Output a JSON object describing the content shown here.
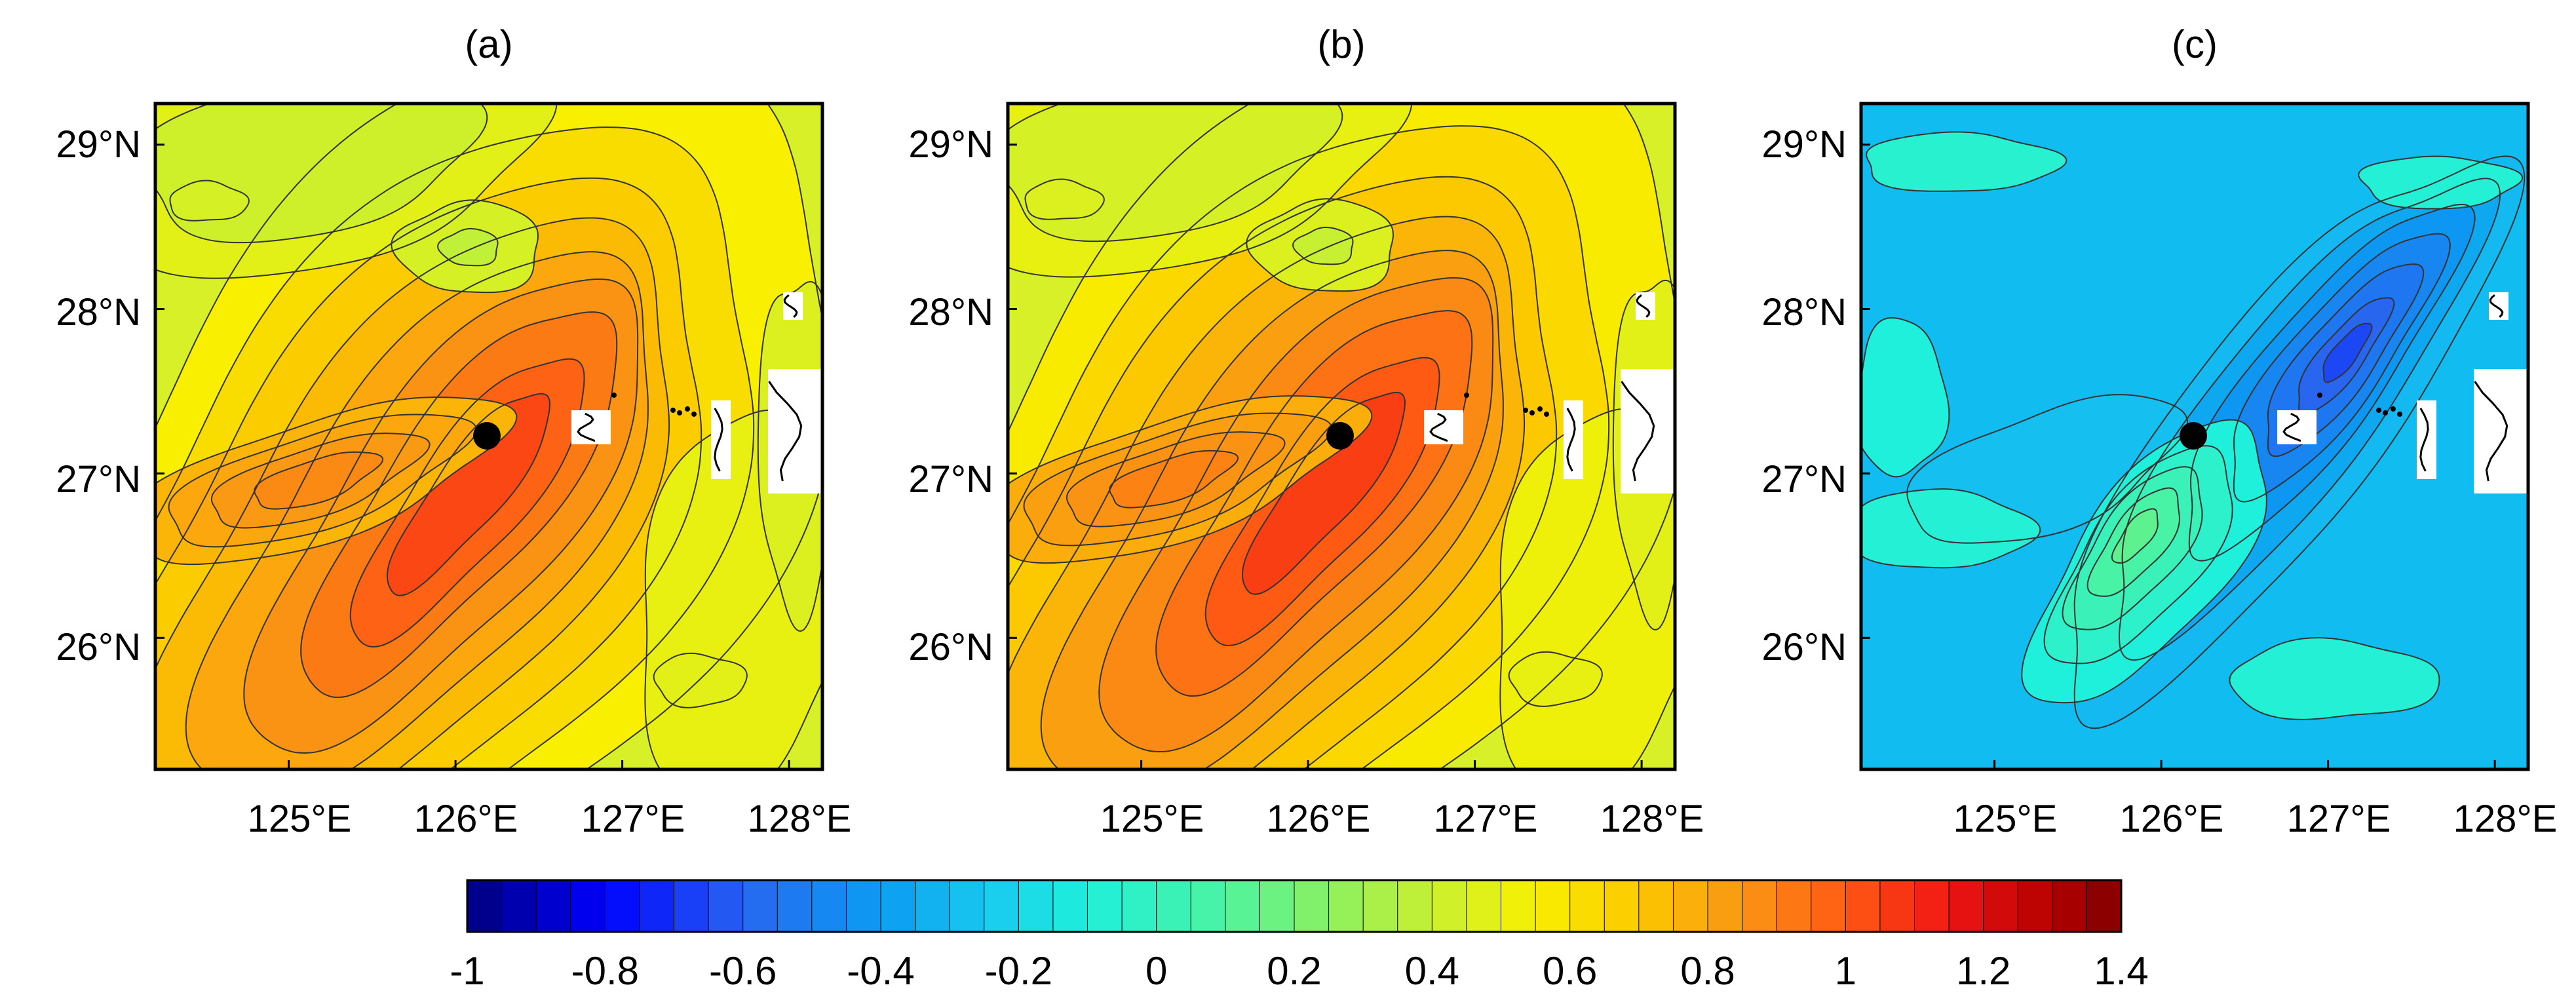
{
  "figure": {
    "panels": [
      {
        "label": "(a)",
        "field": "a"
      },
      {
        "label": "(b)",
        "field": "b"
      },
      {
        "label": "(c)",
        "field": "c"
      }
    ],
    "y_ticks": [
      "29°N",
      "28°N",
      "27°N",
      "26°N"
    ],
    "x_ticks": [
      "125°E",
      "126°E",
      "127°E",
      "128°E"
    ],
    "colorbar": {
      "labels": [
        "-1",
        "-0.8",
        "-0.6",
        "-0.4",
        "-0.2",
        "0",
        "0.2",
        "0.4",
        "0.6",
        "0.8",
        "1",
        "1.2",
        "1.4"
      ],
      "min": -1,
      "max": 1.4,
      "step": 0.05,
      "stops": [
        {
          "v": -1.0,
          "c": "#00007d"
        },
        {
          "v": -0.8,
          "c": "#0000ff"
        },
        {
          "v": -0.6,
          "c": "#2866f0"
        },
        {
          "v": -0.4,
          "c": "#0b9cf2"
        },
        {
          "v": -0.25,
          "c": "#18c8f0"
        },
        {
          "v": -0.1,
          "c": "#1ff0dc"
        },
        {
          "v": 0.1,
          "c": "#4cf3a0"
        },
        {
          "v": 0.25,
          "c": "#8cf060"
        },
        {
          "v": 0.4,
          "c": "#c8f032"
        },
        {
          "v": 0.55,
          "c": "#f8f000"
        },
        {
          "v": 0.7,
          "c": "#fcc800"
        },
        {
          "v": 0.85,
          "c": "#fa9614"
        },
        {
          "v": 1.0,
          "c": "#ff5a14"
        },
        {
          "v": 1.15,
          "c": "#f01414"
        },
        {
          "v": 1.3,
          "c": "#b40000"
        },
        {
          "v": 1.4,
          "c": "#800000"
        }
      ]
    },
    "map": {
      "lon_range": [
        124.2,
        128.2
      ],
      "lat_range": [
        25.2,
        29.25
      ],
      "lon_ticks": [
        125,
        126,
        127,
        128
      ],
      "lat_ticks": [
        29,
        28,
        27,
        26
      ],
      "marker": {
        "lon": 126.2,
        "lat": 27.25
      },
      "contour_levels": {
        "a": 0.05,
        "b": 0.05,
        "c": 0.05
      }
    }
  }
}
